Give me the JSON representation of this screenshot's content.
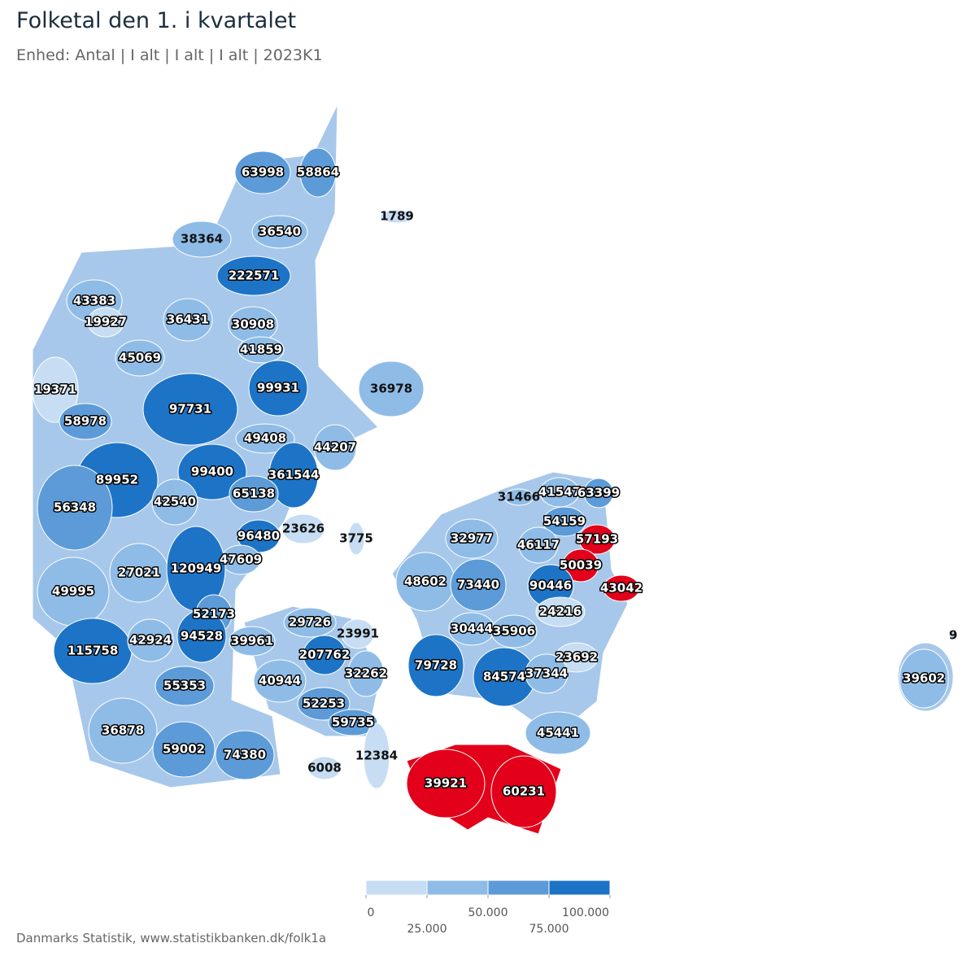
{
  "title": "Folketal den 1. i kvartalet",
  "subtitle": "Enhed: Antal | I alt | I alt | I alt | 2023K1",
  "source": "Danmarks Statistik, www.statistikbanken.dk/folk1a",
  "map_data": {
    "regions": [
      {
        "value": 63998
      },
      {
        "value": 58864
      },
      {
        "value": 1789
      },
      {
        "value": 38364
      },
      {
        "value": 36540
      },
      {
        "value": 222571
      },
      {
        "value": 43383
      },
      {
        "value": 19927
      },
      {
        "value": 36431
      },
      {
        "value": 30908
      },
      {
        "value": 41859
      },
      {
        "value": 45069
      },
      {
        "value": 19371
      },
      {
        "value": 99931
      },
      {
        "value": 36978
      },
      {
        "value": 97731
      },
      {
        "value": 58978
      },
      {
        "value": 49408
      },
      {
        "value": 44207
      },
      {
        "value": 99400
      },
      {
        "value": 361544
      },
      {
        "value": 89952
      },
      {
        "value": 65138
      },
      {
        "value": 31466
      },
      {
        "value": 41547
      },
      {
        "value": 63399
      },
      {
        "value": 42540
      },
      {
        "value": 56348
      },
      {
        "value": 54159
      },
      {
        "value": 96480
      },
      {
        "value": 23626
      },
      {
        "value": 3775
      },
      {
        "value": 32977
      },
      {
        "value": 46117
      },
      {
        "value": 57193,
        "color": "#e2001a"
      },
      {
        "value": 50039,
        "color": "#e2001a"
      },
      {
        "value": 47609
      },
      {
        "value": 27021
      },
      {
        "value": 120949
      },
      {
        "value": 48602
      },
      {
        "value": 73440
      },
      {
        "value": 90446
      },
      {
        "value": 43042,
        "color": "#e2001a"
      },
      {
        "value": 49995
      },
      {
        "value": 24216
      },
      {
        "value": 52173
      },
      {
        "value": 29726
      },
      {
        "value": 23991
      },
      {
        "value": 30444
      },
      {
        "value": 35906
      },
      {
        "value": 115758
      },
      {
        "value": 42924
      },
      {
        "value": 94528
      },
      {
        "value": 39961
      },
      {
        "value": 207762
      },
      {
        "value": 23692
      },
      {
        "value": 32262
      },
      {
        "value": 79728
      },
      {
        "value": 84574
      },
      {
        "value": 37344
      },
      {
        "value": 40944
      },
      {
        "value": 55353
      },
      {
        "value": 39602
      },
      {
        "value": 52253
      },
      {
        "value": 59735
      },
      {
        "value": 45441
      },
      {
        "value": 36878
      },
      {
        "value": 59002
      },
      {
        "value": 74380
      },
      {
        "value": 12384
      },
      {
        "value": 6008
      },
      {
        "value": 39921,
        "color": "#e2001a"
      },
      {
        "value": 60231,
        "color": "#e2001a"
      },
      {
        "value": 9
      }
    ],
    "scale": {
      "colors": [
        "#c6ddf3",
        "#8fbce7",
        "#5c9bd8",
        "#1d74c6"
      ],
      "ticks": [
        0,
        {
          "value": 25000,
          "label": "25.000"
        },
        {
          "value": 50000,
          "label": "50.000"
        },
        {
          "value": 75000,
          "label": "75.000"
        },
        {
          "value": 100000,
          "label": "100.000"
        }
      ]
    }
  }
}
